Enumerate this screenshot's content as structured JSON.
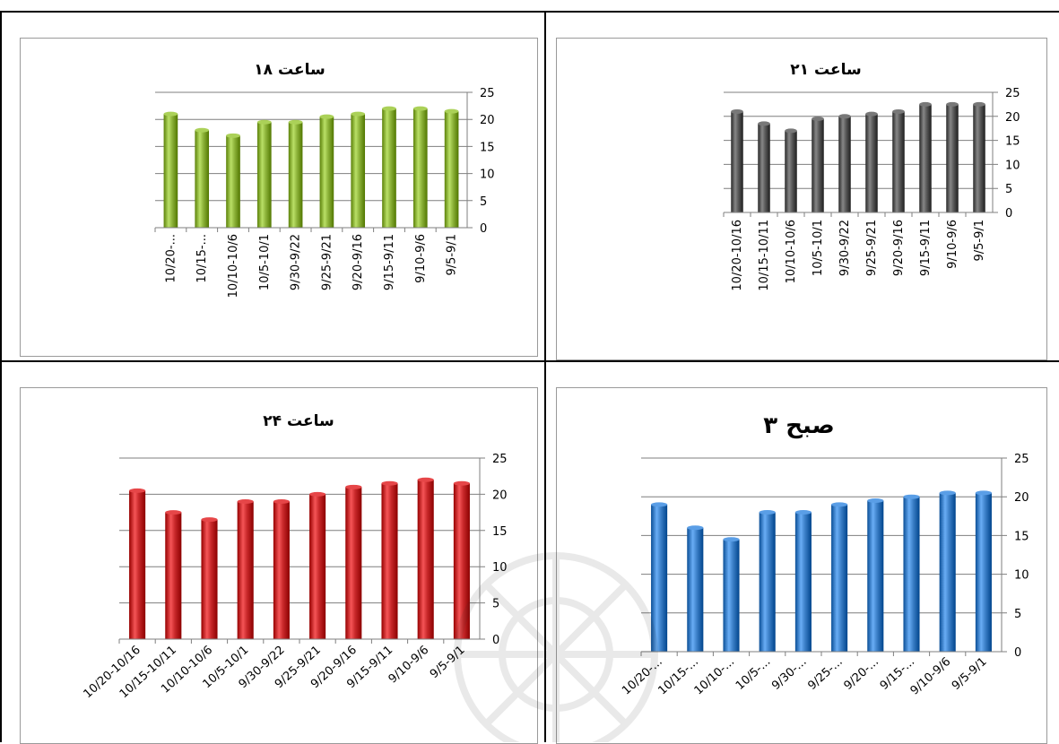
{
  "chart_data": [
    {
      "id": "c18",
      "type": "bar",
      "title": "ساعت ۱۸",
      "categories": [
        "10/20-...",
        "10/15-...",
        "10/10-10/6",
        "10/5-10/1",
        "9/30-9/22",
        "9/25-9/21",
        "9/20-9/16",
        "9/15-9/11",
        "9/10-9/6",
        "9/5-9/1"
      ],
      "values": [
        21,
        18,
        17,
        19.5,
        19.5,
        20.5,
        21,
        22,
        22,
        21.5
      ],
      "ylim": [
        0,
        25
      ],
      "yticks": [
        "0",
        "5",
        "10",
        "15",
        "20",
        "25"
      ],
      "grid": true,
      "color": "#8db33a",
      "legend": "none"
    },
    {
      "id": "c21",
      "type": "bar",
      "title": "ساعت ۲۱",
      "categories": [
        "10/20-10/16",
        "10/15-10/11",
        "10/10-10/6",
        "10/5-10/1",
        "9/30-9/22",
        "9/25-9/21",
        "9/20-9/16",
        "9/15-9/11",
        "9/10-9/6",
        "9/5-9/1"
      ],
      "values": [
        21,
        18.5,
        17,
        19.5,
        20,
        20.5,
        21,
        22.5,
        22.5,
        22.5
      ],
      "ylim": [
        0,
        25
      ],
      "yticks": [
        "0",
        "5",
        "10",
        "15",
        "20",
        "25"
      ],
      "grid": true,
      "color": "#5a5a5a",
      "legend": "none"
    },
    {
      "id": "c24",
      "type": "bar",
      "title": "ساعت ۲۴",
      "categories": [
        "10/20-10/16",
        "10/15-10/11",
        "10/10-10/6",
        "10/5-10/1",
        "9/30-9/22",
        "9/25-9/21",
        "9/20-9/16",
        "9/15-9/11",
        "9/10-9/6",
        "9/5-9/1"
      ],
      "values": [
        20.5,
        17.5,
        16.5,
        19,
        19,
        20,
        21,
        21.5,
        22,
        21.5
      ],
      "ylim": [
        0,
        25
      ],
      "yticks": [
        "0",
        "5",
        "10",
        "15",
        "20",
        "25"
      ],
      "grid": true,
      "color": "#c8282a",
      "legend": "none"
    },
    {
      "id": "c3",
      "type": "bar",
      "title": "۳ صبح",
      "categories": [
        "10/20-...",
        "10/15-...",
        "10/10-...",
        "10/5-...",
        "9/30-...",
        "9/25-...",
        "9/20-...",
        "9/15-...",
        "9/10-9/6",
        "9/5-9/1"
      ],
      "values": [
        19,
        16,
        14.5,
        18,
        18,
        19,
        19.5,
        20,
        20.5,
        20.5
      ],
      "ylim": [
        0,
        25
      ],
      "yticks": [
        "0",
        "5",
        "10",
        "15",
        "20",
        "25"
      ],
      "grid": true,
      "color": "#3c80c8",
      "legend": "none"
    }
  ]
}
